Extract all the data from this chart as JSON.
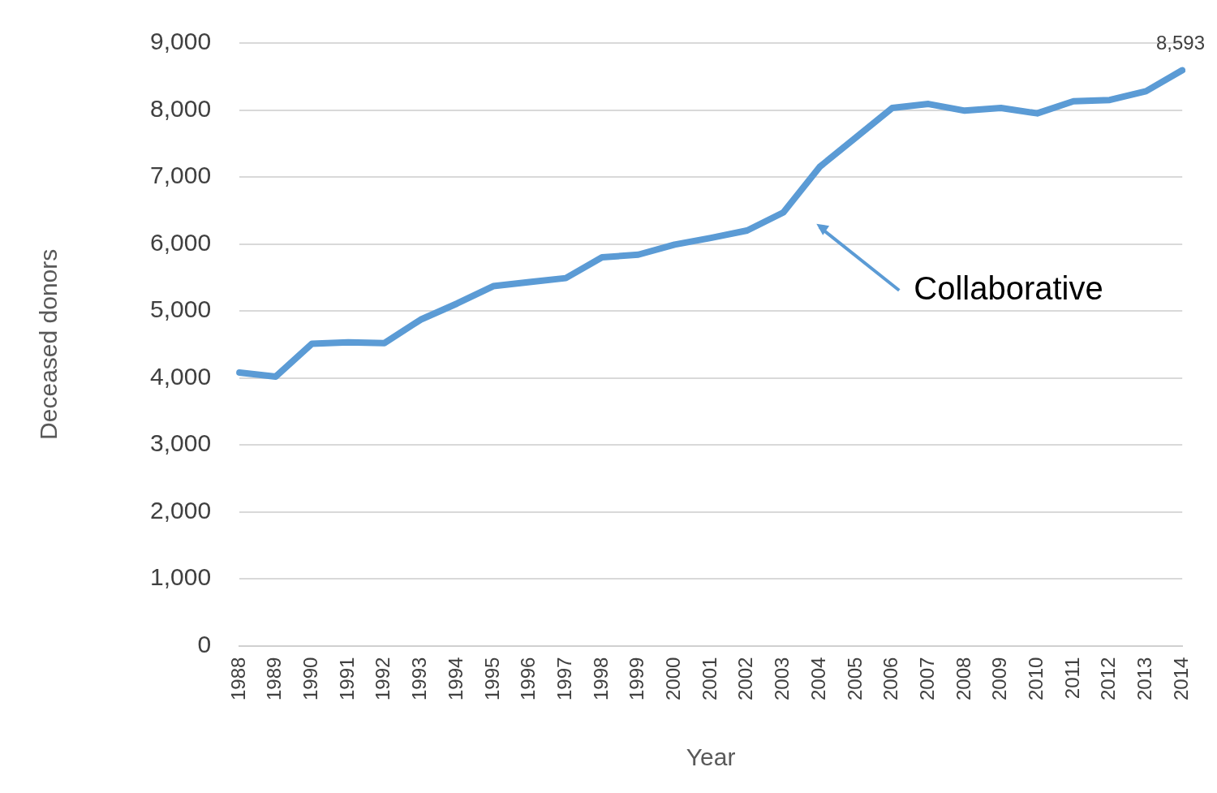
{
  "chart_data": {
    "type": "line",
    "xlabel": "Year",
    "ylabel": "Deceased donors",
    "categories": [
      "1988",
      "1989",
      "1990",
      "1991",
      "1992",
      "1993",
      "1994",
      "1995",
      "1996",
      "1997",
      "1998",
      "1999",
      "2000",
      "2001",
      "2002",
      "2003",
      "2004",
      "2005",
      "2006",
      "2007",
      "2008",
      "2009",
      "2010",
      "2011",
      "2012",
      "2013",
      "2014"
    ],
    "series": [
      {
        "color": "#5b9bd5",
        "values": [
          4080,
          4020,
          4510,
          4530,
          4520,
          4870,
          5110,
          5370,
          5430,
          5490,
          5800,
          5840,
          5990,
          6090,
          6200,
          6470,
          7150,
          7590,
          8030,
          8090,
          7990,
          8030,
          7950,
          8130,
          8150,
          8280,
          8593
        ],
        "value_labels": [
          null,
          null,
          null,
          null,
          null,
          null,
          null,
          null,
          null,
          null,
          null,
          null,
          null,
          null,
          null,
          null,
          null,
          null,
          null,
          null,
          null,
          null,
          null,
          null,
          null,
          null,
          "8,593"
        ]
      }
    ],
    "ylim": [
      0,
      9000
    ],
    "yticks": [
      0,
      {
        "value": 1000,
        "label": "1,000"
      },
      {
        "value": 2000,
        "label": "2,000"
      },
      {
        "value": 3000,
        "label": "3,000"
      },
      {
        "value": 4000,
        "label": "4,000"
      },
      {
        "value": 5000,
        "label": "5,000"
      },
      {
        "value": 6000,
        "label": "6,000"
      },
      {
        "value": 7000,
        "label": "7,000"
      },
      {
        "value": 8000,
        "label": "8,000"
      },
      {
        "value": 9000,
        "label": "9,000"
      }
    ],
    "grid": "y",
    "legend": false,
    "marker": "none",
    "line_style": "solid",
    "annotations": [
      "Collaborative"
    ]
  }
}
